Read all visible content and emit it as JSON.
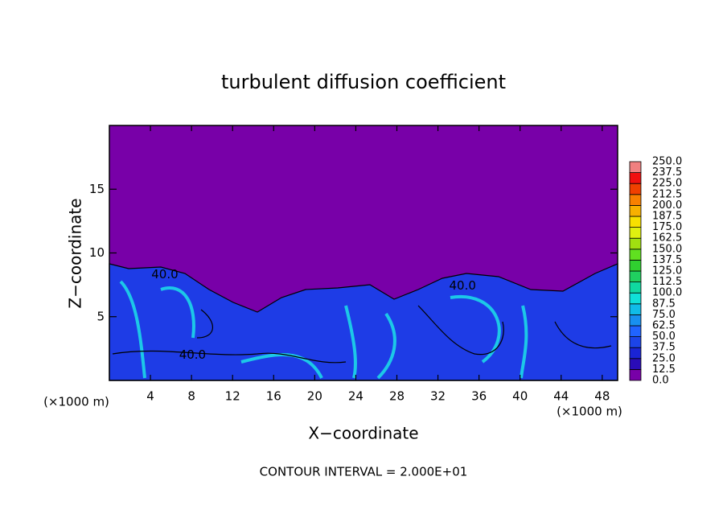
{
  "chart_data": {
    "type": "contour",
    "title": "turbulent diffusion coefficient",
    "x_label": "X−coordinate",
    "y_label": "Z−coordinate",
    "x_unit": "(×1000 m)",
    "y_unit": "(×1000 m)",
    "footnote": "CONTOUR INTERVAL = 2.000E+01",
    "xlim": [
      0,
      49.5
    ],
    "ylim": [
      0,
      20
    ],
    "xticks": [
      4,
      8,
      12,
      16,
      20,
      24,
      28,
      32,
      36,
      40,
      44,
      48
    ],
    "yticks": [
      5,
      10,
      15
    ],
    "contour_labels": [
      {
        "text": "40.0",
        "x": 8.1,
        "y": 2.0
      },
      {
        "text": "40.0",
        "x": 5.4,
        "y": 8.3
      },
      {
        "text": "40.0",
        "x": 34.4,
        "y": 7.4
      }
    ],
    "colorbar": {
      "levels": [
        {
          "value": 0,
          "label": "0.0"
        },
        {
          "value": 12.5,
          "label": "12.5"
        },
        {
          "value": 25,
          "label": "25.0"
        },
        {
          "value": 37.5,
          "label": "37.5"
        },
        {
          "value": 50,
          "label": "50.0"
        },
        {
          "value": 62.5,
          "label": "62.5"
        },
        {
          "value": 75,
          "label": "75.0"
        },
        {
          "value": 87.5,
          "label": "87.5"
        },
        {
          "value": 100,
          "label": "100.0"
        },
        {
          "value": 112.5,
          "label": "112.5"
        },
        {
          "value": 125,
          "label": "125.0"
        },
        {
          "value": 137.5,
          "label": "137.5"
        },
        {
          "value": 150,
          "label": "150.0"
        },
        {
          "value": 162.5,
          "label": "162.5"
        },
        {
          "value": 175,
          "label": "175.0"
        },
        {
          "value": 187.5,
          "label": "187.5"
        },
        {
          "value": 200,
          "label": "200.0"
        },
        {
          "value": 212.5,
          "label": "212.5"
        },
        {
          "value": 225,
          "label": "225.0"
        },
        {
          "value": 237.5,
          "label": "237.5"
        },
        {
          "value": 250,
          "label": "250.0"
        }
      ],
      "colors": [
        "#7800a8",
        "#2a0cb8",
        "#1a24d4",
        "#1c44e8",
        "#2064ff",
        "#1890f0",
        "#10bce8",
        "#10e0d8",
        "#10d8a0",
        "#20d060",
        "#30d030",
        "#60e020",
        "#a0e010",
        "#e0f010",
        "#f8e000",
        "#f8b000",
        "#f88000",
        "#f04000",
        "#f01010",
        "#f08080"
      ]
    }
  }
}
